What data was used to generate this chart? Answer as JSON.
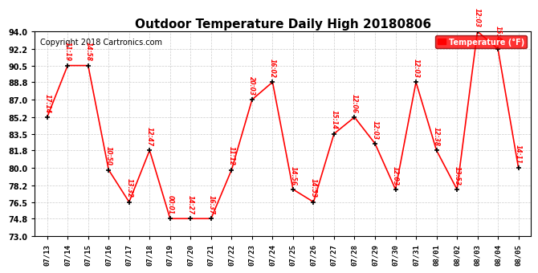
{
  "title": "Outdoor Temperature Daily High 20180806",
  "copyright": "Copyright 2018 Cartronics.com",
  "legend_label": "Temperature (°F)",
  "dates": [
    "07/13",
    "07/14",
    "07/15",
    "07/16",
    "07/17",
    "07/18",
    "07/19",
    "07/20",
    "07/21",
    "07/22",
    "07/23",
    "07/24",
    "07/25",
    "07/26",
    "07/27",
    "07/28",
    "07/29",
    "07/30",
    "07/31",
    "08/01",
    "08/02",
    "08/03",
    "08/04",
    "08/05"
  ],
  "temps": [
    85.2,
    90.5,
    90.5,
    79.8,
    76.5,
    81.8,
    74.8,
    74.8,
    74.8,
    79.8,
    87.0,
    88.8,
    77.8,
    76.5,
    83.5,
    85.2,
    82.5,
    77.8,
    88.8,
    81.8,
    77.8,
    94.0,
    92.2,
    80.0
  ],
  "annotations": [
    "17:14",
    "11:19",
    "14:58",
    "10:50",
    "13:32",
    "12:47",
    "00:01",
    "14:27",
    "16:37",
    "11:12",
    "20:03",
    "16:02",
    "14:56",
    "14:53",
    "15:14",
    "12:06",
    "12:03",
    "12:03",
    "12:03",
    "12:38",
    "13:53",
    "12:03",
    "15:40",
    "14:11"
  ],
  "ylim": [
    73.0,
    94.0
  ],
  "yticks": [
    73.0,
    74.8,
    76.5,
    78.2,
    80.0,
    81.8,
    83.5,
    85.2,
    87.0,
    88.8,
    90.5,
    92.2,
    94.0
  ],
  "line_color": "red",
  "marker_color": "black",
  "annotation_color": "red",
  "title_fontsize": 11,
  "copyright_fontsize": 7,
  "bg_color": "#ffffff",
  "grid_color": "#cccccc"
}
